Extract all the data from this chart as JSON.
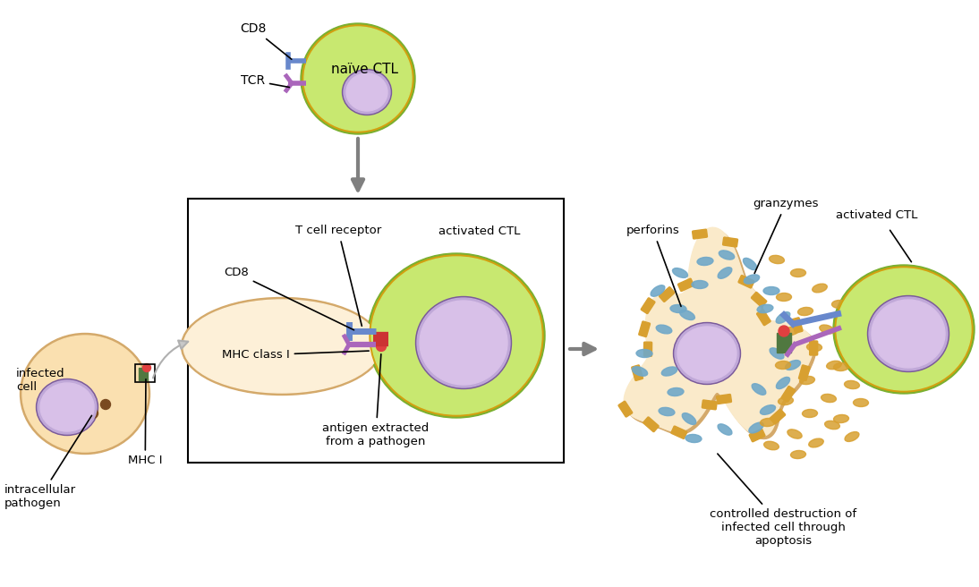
{
  "bg_color": "#ffffff",
  "cell_border_color": "#d4a96a",
  "cell_fill_color": "#f5e6c8",
  "cell_inner_color": "#fdf0d8",
  "ctl_outer_color": "#c8e870",
  "ctl_mid_color": "#b0d855",
  "ctl_inner_color": "#c8e870",
  "ctl_yellow_ring": "#d4a010",
  "ctl_green_border": "#7ab030",
  "nucleus_border": "#7a5a9a",
  "nucleus_fill": "#c0a8d8",
  "nucleus_inner": "#d8c0e8",
  "mhc_gray": "#909090",
  "mhc_green": "#507840",
  "mhc_red": "#e04040",
  "cd8_blue": "#6888cc",
  "tcr_purple": "#aa66bb",
  "arrow_gray": "#808080",
  "perforin_blue": "#70a8c8",
  "granzyme_orange": "#d8a030",
  "text_color": "#000000",
  "labels": {
    "naive_ctl": "naïve CTL",
    "cd8_top": "CD8",
    "tcr": "TCR",
    "infected_cell": "infected\ncell",
    "intracellular_pathogen": "intracellular\npathogen",
    "mhc_i_label": "MHC I",
    "t_cell_receptor": "T cell receptor",
    "cd8_box": "CD8",
    "mhc_class_i": "MHC class I",
    "activated_ctl_box": "activated CTL",
    "antigen_extracted": "antigen extracted\nfrom a pathogen",
    "perforins": "perforins",
    "granzymes": "granzymes",
    "activated_ctl_right": "activated CTL",
    "controlled_destruction": "controlled destruction of\ninfected cell through\napoptosis"
  }
}
